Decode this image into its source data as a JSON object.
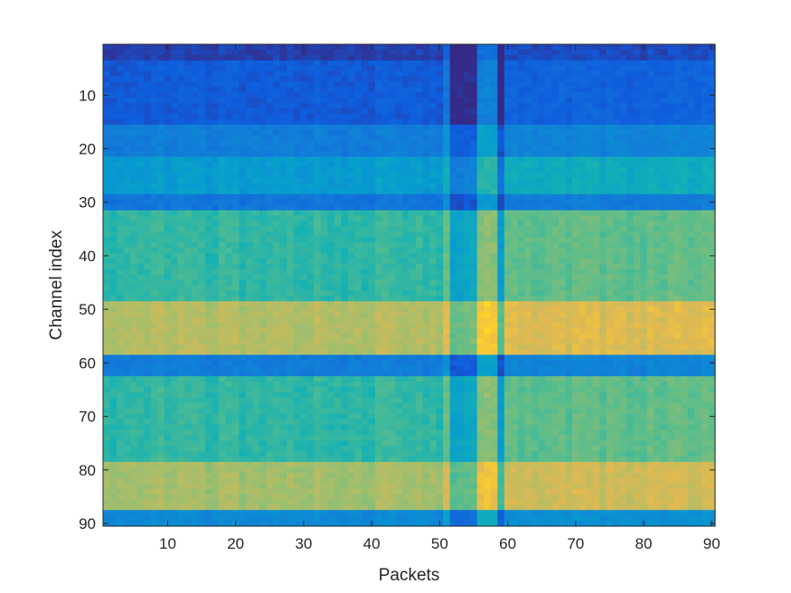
{
  "chart_data": {
    "type": "heatmap",
    "title": "",
    "xlabel": "Packets",
    "ylabel": "Channel index",
    "xlim": [
      0.5,
      90.5
    ],
    "ylim": [
      0.5,
      90.5
    ],
    "y_direction": "reverse",
    "x_ticks": [
      10,
      20,
      30,
      40,
      50,
      60,
      70,
      80,
      90
    ],
    "y_ticks": [
      10,
      20,
      30,
      40,
      50,
      60,
      70,
      80,
      90
    ],
    "grid": false,
    "colorbar": false,
    "colormap": "parula",
    "n_packets": 90,
    "n_channels": 90,
    "channel_level_profile": [
      {
        "channels": [
          1,
          3
        ],
        "level": 0.05
      },
      {
        "channels": [
          4,
          15
        ],
        "level": 0.12
      },
      {
        "channels": [
          16,
          21
        ],
        "level": 0.25
      },
      {
        "channels": [
          22,
          28
        ],
        "level": 0.38
      },
      {
        "channels": [
          29,
          31
        ],
        "level": 0.22
      },
      {
        "channels": [
          32,
          48
        ],
        "level": 0.55
      },
      {
        "channels": [
          49,
          58
        ],
        "level": 0.78
      },
      {
        "channels": [
          59,
          62
        ],
        "level": 0.25
      },
      {
        "channels": [
          63,
          78
        ],
        "level": 0.55
      },
      {
        "channels": [
          79,
          87
        ],
        "level": 0.75
      },
      {
        "channels": [
          88,
          90
        ],
        "level": 0.3
      }
    ],
    "packet_features": [
      {
        "packets": [
          51,
          51
        ],
        "effect": "bright column"
      },
      {
        "packets": [
          52,
          55
        ],
        "effect": "dim columns"
      },
      {
        "packets": [
          56,
          58
        ],
        "effect": "bright columns"
      },
      {
        "packets": [
          59,
          59
        ],
        "effect": "dim column"
      },
      {
        "packets": [
          60,
          90
        ],
        "effect": "higher overall level"
      }
    ]
  }
}
